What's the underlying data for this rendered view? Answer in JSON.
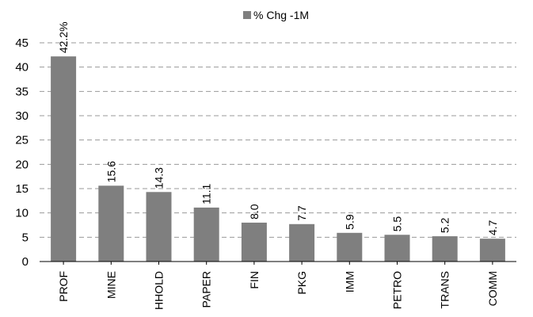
{
  "chart_data": {
    "type": "bar",
    "categories": [
      "PROF",
      "MINE",
      "HHOLD",
      "PAPER",
      "FIN",
      "PKG",
      "IMM",
      "PETRO",
      "TRANS",
      "COMM"
    ],
    "series": [
      {
        "name": "% Chg -1M",
        "values": [
          42.2,
          15.6,
          14.3,
          11.1,
          8.0,
          7.7,
          5.9,
          5.5,
          5.2,
          4.7
        ]
      }
    ],
    "data_labels": [
      "42.2%",
      "15.6",
      "14.3",
      "11.1",
      "8.0",
      "7.7",
      "5.9",
      "5.5",
      "5.2",
      "4.7"
    ],
    "ylim": [
      0,
      45
    ],
    "yticks": [
      0,
      5,
      10,
      15,
      20,
      25,
      30,
      35,
      40,
      45
    ],
    "grid": "horizontal-dashed",
    "legend_position": "top-center",
    "colors": {
      "bar": "#7f7f7f",
      "grid": "#9a9a9a",
      "axis": "#000000"
    }
  }
}
